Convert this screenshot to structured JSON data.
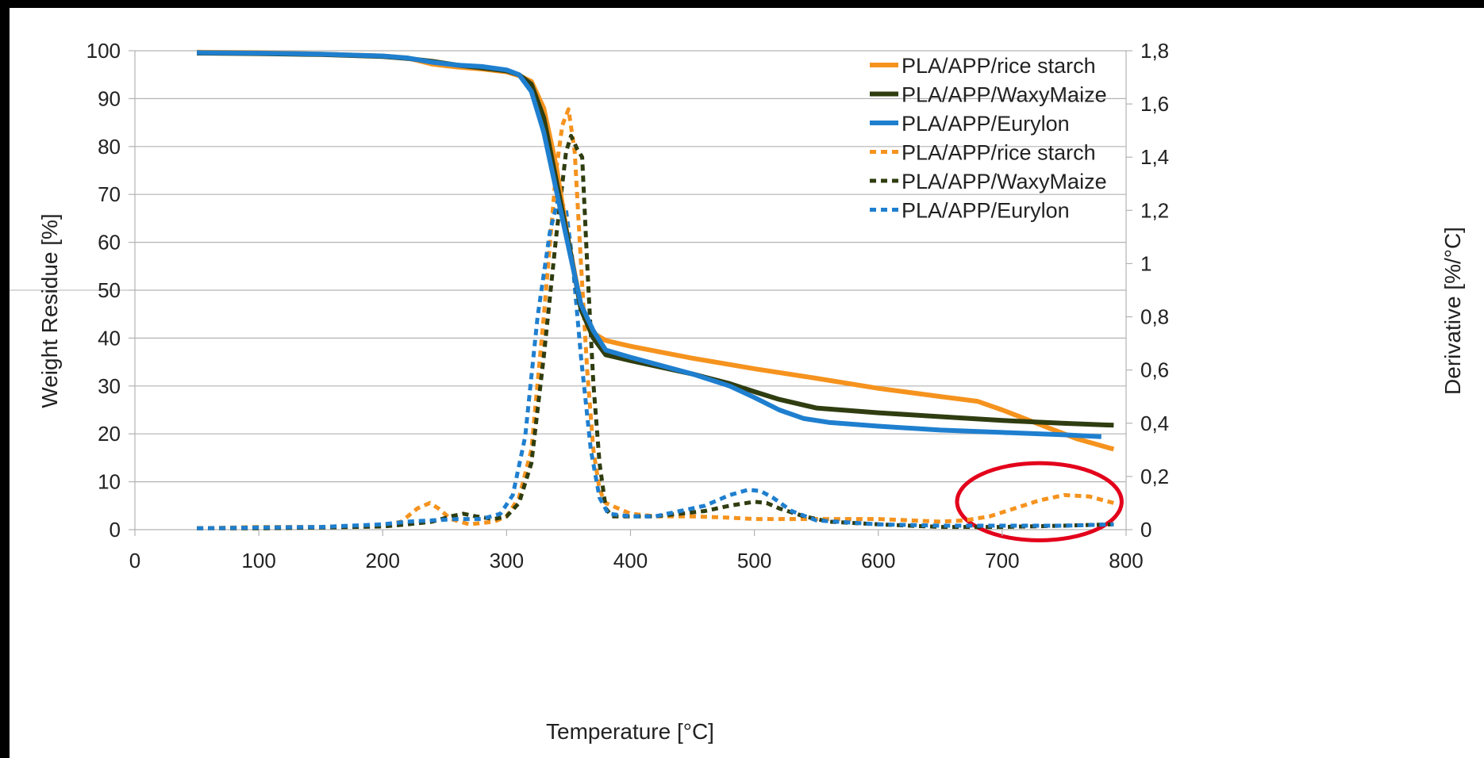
{
  "chart_data": {
    "type": "line",
    "title": "",
    "xlabel": "Temperature [°C]",
    "ylabel": "Weight Residue [%]",
    "y2label": "Derivative [%/°C]",
    "xlim": [
      0,
      800
    ],
    "ylim": [
      0,
      100
    ],
    "y2lim": [
      0,
      1.8
    ],
    "x_ticks": [
      "0",
      "100",
      "200",
      "300",
      "400",
      "500",
      "600",
      "700",
      "800"
    ],
    "y_ticks": [
      "0",
      "10",
      "20",
      "30",
      "40",
      "50",
      "60",
      "70",
      "80",
      "90",
      "100"
    ],
    "y2_ticks": [
      "0",
      "0,2",
      "0,4",
      "0,6",
      "0,8",
      "1",
      "1,2",
      "1,4",
      "1,6",
      "1,8"
    ],
    "grid": true,
    "legend_position": "top-right",
    "colors": {
      "rice": "#f5931e",
      "waxy": "#2f3d10",
      "eurylon": "#1f7fcf",
      "highlight": "#e3001b"
    },
    "annotation": {
      "shape": "ellipse",
      "color": "#e3001b",
      "x_range": [
        670,
        790
      ],
      "y2_range": [
        -0.04,
        0.25
      ]
    },
    "series": [
      {
        "name": "PLA/APP/rice starch",
        "axis": "left",
        "style": "solid",
        "color": "#f5931e",
        "points": [
          [
            50,
            99.7
          ],
          [
            100,
            99.6
          ],
          [
            150,
            99.3
          ],
          [
            200,
            98.9
          ],
          [
            220,
            98.5
          ],
          [
            240,
            97.2
          ],
          [
            260,
            96.6
          ],
          [
            280,
            96.2
          ],
          [
            300,
            95.6
          ],
          [
            310,
            94.8
          ],
          [
            320,
            93.6
          ],
          [
            330,
            88
          ],
          [
            340,
            76
          ],
          [
            350,
            60
          ],
          [
            360,
            47
          ],
          [
            370,
            41
          ],
          [
            380,
            39.5
          ],
          [
            400,
            38.3
          ],
          [
            450,
            35.8
          ],
          [
            500,
            33.6
          ],
          [
            550,
            31.6
          ],
          [
            600,
            29.5
          ],
          [
            650,
            27.8
          ],
          [
            680,
            26.8
          ],
          [
            700,
            25
          ],
          [
            720,
            23
          ],
          [
            740,
            21
          ],
          [
            760,
            19
          ],
          [
            790,
            16.8
          ]
        ]
      },
      {
        "name": "PLA/APP/WaxyMaize",
        "axis": "left",
        "style": "solid",
        "color": "#2f3d10",
        "points": [
          [
            50,
            99.5
          ],
          [
            100,
            99.4
          ],
          [
            150,
            99.2
          ],
          [
            200,
            98.8
          ],
          [
            220,
            98.4
          ],
          [
            240,
            97.8
          ],
          [
            260,
            97
          ],
          [
            280,
            96.4
          ],
          [
            300,
            95.8
          ],
          [
            310,
            95
          ],
          [
            320,
            93
          ],
          [
            330,
            86
          ],
          [
            340,
            73
          ],
          [
            350,
            60
          ],
          [
            360,
            46
          ],
          [
            370,
            40
          ],
          [
            380,
            36.5
          ],
          [
            400,
            35.3
          ],
          [
            450,
            32.5
          ],
          [
            480,
            30.5
          ],
          [
            500,
            28.8
          ],
          [
            520,
            27.2
          ],
          [
            550,
            25.4
          ],
          [
            600,
            24.4
          ],
          [
            650,
            23.6
          ],
          [
            700,
            22.8
          ],
          [
            750,
            22.2
          ],
          [
            790,
            21.8
          ]
        ]
      },
      {
        "name": "PLA/APP/Eurylon",
        "axis": "left",
        "style": "solid",
        "color": "#1f7fcf",
        "points": [
          [
            50,
            99.6
          ],
          [
            100,
            99.5
          ],
          [
            150,
            99.3
          ],
          [
            200,
            98.9
          ],
          [
            220,
            98.5
          ],
          [
            240,
            97.6
          ],
          [
            260,
            97
          ],
          [
            280,
            96.7
          ],
          [
            300,
            96
          ],
          [
            310,
            95
          ],
          [
            320,
            91.5
          ],
          [
            330,
            83
          ],
          [
            340,
            71
          ],
          [
            350,
            59
          ],
          [
            360,
            47
          ],
          [
            370,
            41.5
          ],
          [
            380,
            37.5
          ],
          [
            400,
            36
          ],
          [
            450,
            32.5
          ],
          [
            480,
            30
          ],
          [
            500,
            27.6
          ],
          [
            520,
            25
          ],
          [
            540,
            23.2
          ],
          [
            560,
            22.4
          ],
          [
            600,
            21.6
          ],
          [
            650,
            20.8
          ],
          [
            700,
            20.3
          ],
          [
            750,
            19.8
          ],
          [
            780,
            19.4
          ]
        ]
      },
      {
        "name": "PLA/APP/rice starch",
        "axis": "right",
        "style": "dashed",
        "color": "#f5931e",
        "points": [
          [
            50,
            0.005
          ],
          [
            100,
            0.01
          ],
          [
            150,
            0.01
          ],
          [
            200,
            0.015
          ],
          [
            215,
            0.03
          ],
          [
            228,
            0.08
          ],
          [
            238,
            0.1
          ],
          [
            245,
            0.08
          ],
          [
            255,
            0.04
          ],
          [
            270,
            0.02
          ],
          [
            290,
            0.03
          ],
          [
            300,
            0.05
          ],
          [
            310,
            0.12
          ],
          [
            320,
            0.3
          ],
          [
            330,
            0.8
          ],
          [
            340,
            1.35
          ],
          [
            345,
            1.52
          ],
          [
            350,
            1.58
          ],
          [
            355,
            1.42
          ],
          [
            360,
            1.0
          ],
          [
            365,
            0.6
          ],
          [
            370,
            0.3
          ],
          [
            375,
            0.15
          ],
          [
            380,
            0.1
          ],
          [
            400,
            0.06
          ],
          [
            420,
            0.05
          ],
          [
            450,
            0.05
          ],
          [
            480,
            0.045
          ],
          [
            500,
            0.04
          ],
          [
            550,
            0.04
          ],
          [
            600,
            0.04
          ],
          [
            650,
            0.03
          ],
          [
            670,
            0.035
          ],
          [
            690,
            0.05
          ],
          [
            710,
            0.08
          ],
          [
            730,
            0.11
          ],
          [
            750,
            0.13
          ],
          [
            770,
            0.125
          ],
          [
            790,
            0.1
          ]
        ]
      },
      {
        "name": "PLA/APP/WaxyMaize",
        "axis": "right",
        "style": "dashed",
        "color": "#2f3d10",
        "points": [
          [
            50,
            0.005
          ],
          [
            100,
            0.005
          ],
          [
            150,
            0.008
          ],
          [
            200,
            0.012
          ],
          [
            220,
            0.02
          ],
          [
            240,
            0.03
          ],
          [
            255,
            0.05
          ],
          [
            265,
            0.06
          ],
          [
            275,
            0.05
          ],
          [
            290,
            0.04
          ],
          [
            300,
            0.05
          ],
          [
            310,
            0.1
          ],
          [
            320,
            0.25
          ],
          [
            330,
            0.65
          ],
          [
            340,
            1.1
          ],
          [
            348,
            1.42
          ],
          [
            352,
            1.48
          ],
          [
            357,
            1.43
          ],
          [
            361,
            1.4
          ],
          [
            365,
            1.0
          ],
          [
            370,
            0.55
          ],
          [
            375,
            0.25
          ],
          [
            380,
            0.08
          ],
          [
            385,
            0.05
          ],
          [
            400,
            0.05
          ],
          [
            420,
            0.05
          ],
          [
            440,
            0.06
          ],
          [
            460,
            0.07
          ],
          [
            480,
            0.09
          ],
          [
            500,
            0.105
          ],
          [
            510,
            0.1
          ],
          [
            520,
            0.08
          ],
          [
            540,
            0.05
          ],
          [
            560,
            0.03
          ],
          [
            600,
            0.02
          ],
          [
            650,
            0.01
          ],
          [
            700,
            0.01
          ],
          [
            750,
            0.015
          ],
          [
            790,
            0.02
          ]
        ]
      },
      {
        "name": "PLA/APP/Eurylon",
        "axis": "right",
        "style": "dashed",
        "color": "#1f7fcf",
        "points": [
          [
            50,
            0.005
          ],
          [
            100,
            0.008
          ],
          [
            150,
            0.01
          ],
          [
            200,
            0.02
          ],
          [
            220,
            0.03
          ],
          [
            240,
            0.035
          ],
          [
            260,
            0.04
          ],
          [
            280,
            0.04
          ],
          [
            295,
            0.06
          ],
          [
            305,
            0.13
          ],
          [
            315,
            0.35
          ],
          [
            325,
            0.8
          ],
          [
            335,
            1.12
          ],
          [
            342,
            1.25
          ],
          [
            348,
            1.2
          ],
          [
            353,
            1.02
          ],
          [
            360,
            0.65
          ],
          [
            368,
            0.3
          ],
          [
            375,
            0.12
          ],
          [
            382,
            0.06
          ],
          [
            400,
            0.05
          ],
          [
            420,
            0.05
          ],
          [
            440,
            0.07
          ],
          [
            460,
            0.09
          ],
          [
            480,
            0.13
          ],
          [
            495,
            0.15
          ],
          [
            505,
            0.145
          ],
          [
            515,
            0.12
          ],
          [
            530,
            0.07
          ],
          [
            550,
            0.035
          ],
          [
            600,
            0.02
          ],
          [
            650,
            0.015
          ],
          [
            700,
            0.015
          ],
          [
            750,
            0.015
          ],
          [
            790,
            0.02
          ]
        ]
      }
    ]
  }
}
